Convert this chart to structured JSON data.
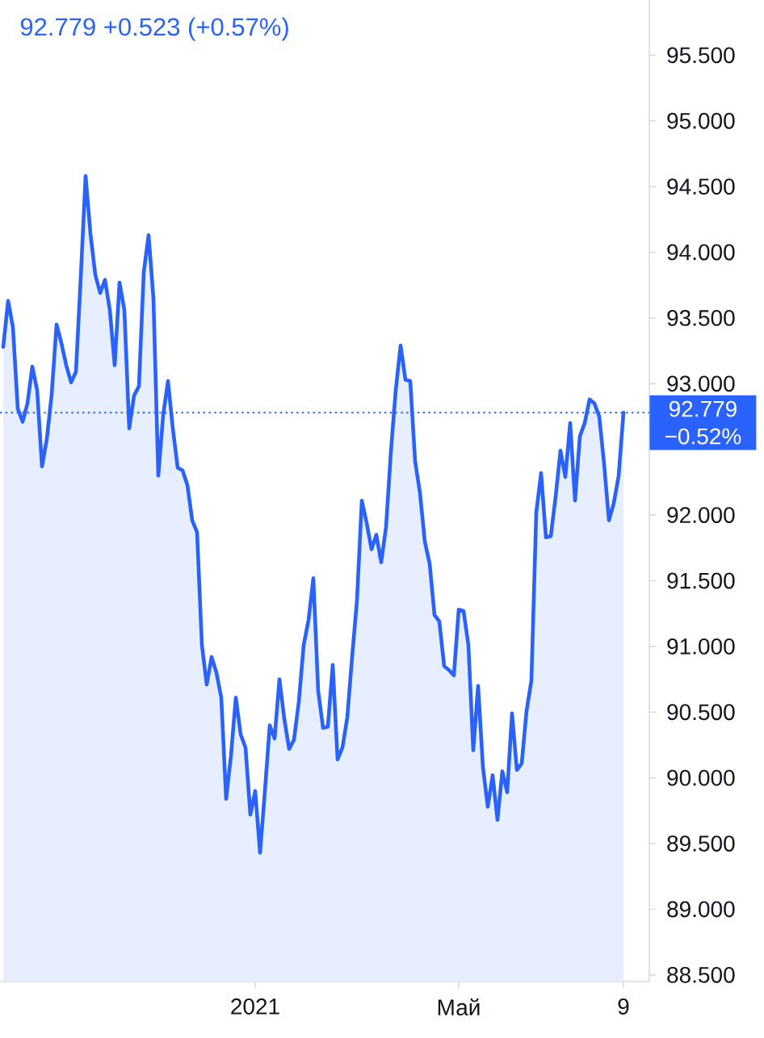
{
  "chart_data": {
    "type": "area",
    "title": "92.779 +0.523 (+0.57%)",
    "categories": [
      null,
      null,
      null,
      null,
      null,
      null,
      null,
      null,
      null,
      null,
      null,
      null,
      null,
      null,
      null,
      null,
      null,
      null,
      null,
      null,
      null,
      null,
      null,
      null,
      null,
      null,
      null,
      null,
      null,
      null,
      null,
      null,
      null,
      null,
      null,
      null,
      null,
      null,
      null,
      null,
      null,
      null,
      null,
      null,
      null,
      null,
      null,
      null,
      null,
      null,
      null,
      null,
      "2021",
      null,
      null,
      null,
      null,
      null,
      null,
      null,
      null,
      null,
      null,
      null,
      null,
      null,
      null,
      null,
      null,
      null,
      null,
      null,
      null,
      null,
      null,
      null,
      null,
      null,
      null,
      null,
      null,
      null,
      null,
      null,
      null,
      null,
      null,
      null,
      null,
      null,
      null,
      null,
      null,
      null,
      "Май",
      null,
      null,
      null,
      null,
      null,
      null,
      null,
      null,
      null,
      null,
      null,
      null,
      null,
      null,
      null,
      null,
      null,
      null,
      null,
      null,
      null,
      null,
      null,
      null,
      null,
      null,
      null,
      null,
      null,
      null,
      null,
      null,
      null,
      "9"
    ],
    "values": [
      93.28,
      93.63,
      93.43,
      92.81,
      92.71,
      92.85,
      93.13,
      92.95,
      92.37,
      92.58,
      92.92,
      93.45,
      93.31,
      93.14,
      93.01,
      93.09,
      93.81,
      94.58,
      94.14,
      93.83,
      93.69,
      93.79,
      93.56,
      93.14,
      93.77,
      93.56,
      92.66,
      92.91,
      92.98,
      93.85,
      94.13,
      93.65,
      92.3,
      92.76,
      93.02,
      92.66,
      92.36,
      92.34,
      92.23,
      91.96,
      91.87,
      91.01,
      90.71,
      90.92,
      90.8,
      90.61,
      89.84,
      90.17,
      90.61,
      90.33,
      90.23,
      89.72,
      89.9,
      89.43,
      89.9,
      90.4,
      90.3,
      90.75,
      90.45,
      90.22,
      90.29,
      90.58,
      91.01,
      91.2,
      91.52,
      90.66,
      90.38,
      90.39,
      90.86,
      90.14,
      90.23,
      90.46,
      90.92,
      91.35,
      92.11,
      91.94,
      91.74,
      91.85,
      91.64,
      91.91,
      92.48,
      92.95,
      93.29,
      93.03,
      93.02,
      92.41,
      92.17,
      91.8,
      91.63,
      91.24,
      91.19,
      90.85,
      90.82,
      90.78,
      91.28,
      91.27,
      91.01,
      90.21,
      90.7,
      90.08,
      89.78,
      90.02,
      89.68,
      90.05,
      89.89,
      90.49,
      90.06,
      90.11,
      90.51,
      90.74,
      92.02,
      92.32,
      91.83,
      91.84,
      92.14,
      92.49,
      92.29,
      92.7,
      92.11,
      92.6,
      92.7,
      92.88,
      92.85,
      92.75,
      92.39,
      91.96,
      92.09,
      92.3,
      92.779
    ],
    "color": "#2962ff",
    "ylim": [
      88.45,
      95.92
    ],
    "yticks": [
      {
        "value": 88.5,
        "label": "88.500"
      },
      {
        "value": 89,
        "label": "89.000"
      },
      {
        "value": 89.5,
        "label": "89.500"
      },
      {
        "value": 90,
        "label": "90.000"
      },
      {
        "value": 90.5,
        "label": "90.500"
      },
      {
        "value": 91,
        "label": "91.000"
      },
      {
        "value": 91.5,
        "label": "91.500"
      },
      {
        "value": 92,
        "label": "92.000"
      },
      {
        "value": 93,
        "label": "93.000"
      },
      {
        "value": 93.5,
        "label": "93.500"
      },
      {
        "value": 94,
        "label": "94.000"
      },
      {
        "value": 94.5,
        "label": "94.500"
      },
      {
        "value": 95,
        "label": "95.000"
      },
      {
        "value": 95.5,
        "label": "95.500"
      }
    ],
    "ref_lines": [
      {
        "axis": "y",
        "value": 92.779,
        "label": "92.779 −0.52%",
        "color": "#2962ff",
        "line_style": "dotted"
      }
    ]
  }
}
